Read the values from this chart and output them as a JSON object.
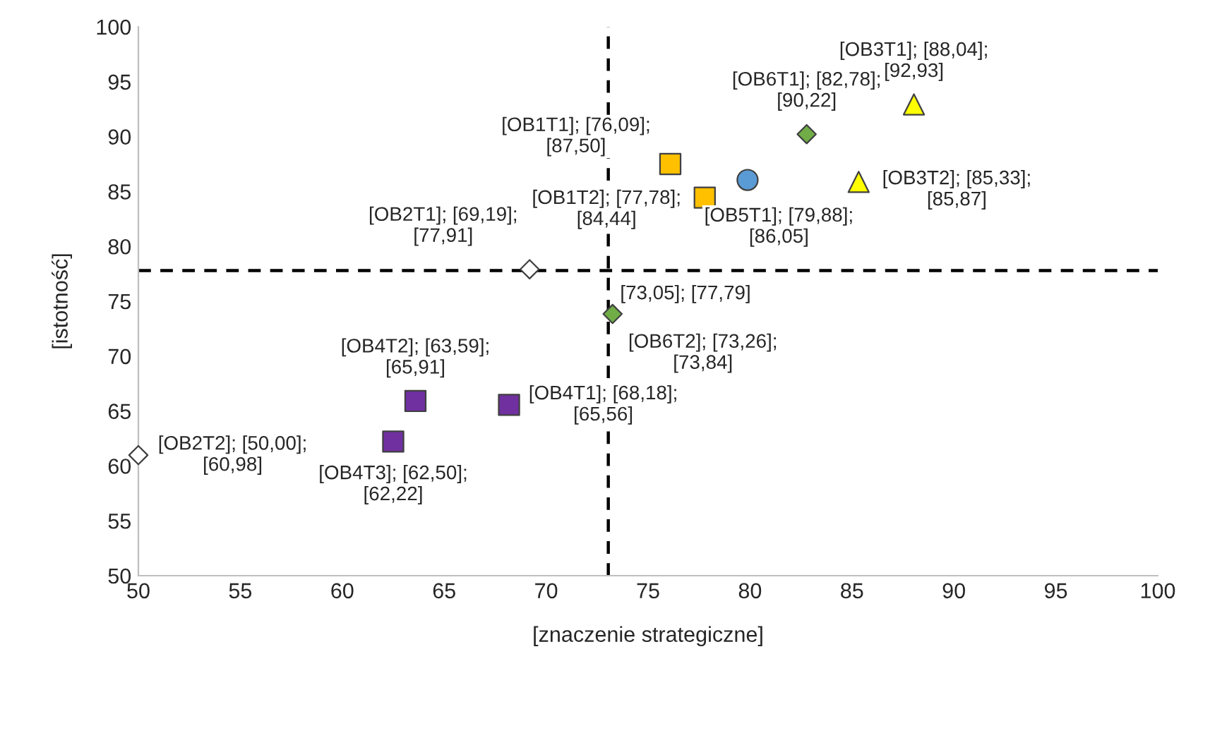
{
  "chart_data": {
    "type": "scatter",
    "xlabel": "[znaczenie strategiczne]",
    "ylabel": "[istotność]",
    "xlim": [
      50,
      100
    ],
    "xticks": [
      50,
      55,
      60,
      65,
      70,
      75,
      80,
      85,
      90,
      95,
      100
    ],
    "ylim": [
      50,
      100
    ],
    "yticks": [
      50,
      55,
      60,
      65,
      70,
      75,
      80,
      85,
      90,
      95,
      100
    ],
    "grid": false,
    "legend": false,
    "series": [
      {
        "color": "#ffc000",
        "marker": "square",
        "x": [
          76.09,
          77.78
        ],
        "values": [
          87.5,
          84.44
        ],
        "value_labels": [
          "[OB1T1]; [76,09];\n[87,50]",
          "[OB1T2]; [77,78];\n[84,44]"
        ]
      },
      {
        "color": "#ffffff",
        "marker": "diamond",
        "x": [
          69.19,
          50.0
        ],
        "values": [
          77.91,
          60.98
        ],
        "value_labels": [
          "[OB2T1]; [69,19];\n[77,91]",
          "[OB2T2]; [50,00];\n[60,98]"
        ]
      },
      {
        "color": "#ffff00",
        "marker": "triangle",
        "x": [
          88.04,
          85.33
        ],
        "values": [
          92.93,
          85.87
        ],
        "value_labels": [
          "[OB3T1]; [88,04];\n[92,93]",
          "[OB3T2]; [85,33];\n[85,87]"
        ]
      },
      {
        "color": "#7030a0",
        "marker": "square",
        "x": [
          68.18,
          63.59,
          62.5
        ],
        "values": [
          65.56,
          65.91,
          62.22
        ],
        "value_labels": [
          "[OB4T1]; [68,18];\n[65,56]",
          "[OB4T2]; [63,59];\n[65,91]",
          "[OB4T3]; [62,50];\n[62,22]"
        ]
      },
      {
        "color": "#5b9bd5",
        "marker": "circle",
        "x": [
          79.88
        ],
        "values": [
          86.05
        ],
        "value_labels": [
          "[OB5T1]; [79,88];\n[86,05]"
        ]
      },
      {
        "color": "#70ad47",
        "marker": "diamond",
        "x": [
          82.78,
          73.26
        ],
        "values": [
          90.22,
          73.84
        ],
        "value_labels": [
          "[OB6T1]; [82,78];\n[90,22]",
          "[OB6T2]; [73,26];\n[73,84]"
        ]
      }
    ],
    "ref_lines": [
      {
        "axis": "x",
        "value": 73.05,
        "line_style": "dashed",
        "color": "#000000"
      },
      {
        "axis": "y",
        "value": 77.79,
        "line_style": "dashed",
        "color": "#000000"
      }
    ],
    "annotations": [
      {
        "text": "[73,05]; [77,79]",
        "x": 73.05,
        "y": 77.79
      }
    ]
  }
}
